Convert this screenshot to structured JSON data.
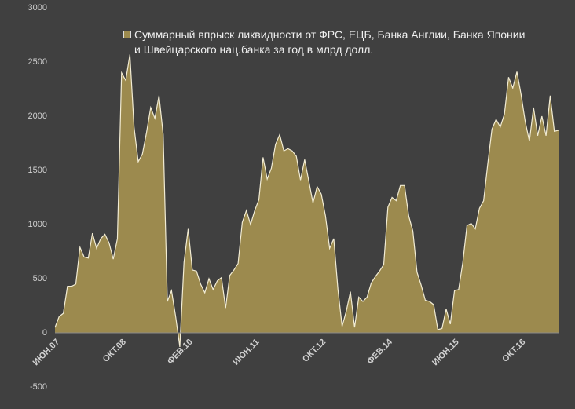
{
  "chart_data": {
    "type": "area",
    "categories": [
      "ИЮН.07",
      null,
      null,
      null,
      null,
      null,
      null,
      null,
      null,
      null,
      null,
      null,
      null,
      null,
      null,
      null,
      "ОКТ.08",
      null,
      null,
      null,
      null,
      null,
      null,
      null,
      null,
      null,
      null,
      null,
      null,
      null,
      null,
      null,
      "ФЕВ.10",
      null,
      null,
      null,
      null,
      null,
      null,
      null,
      null,
      null,
      null,
      null,
      null,
      null,
      null,
      null,
      "ИЮН.11",
      null,
      null,
      null,
      null,
      null,
      null,
      null,
      null,
      null,
      null,
      null,
      null,
      null,
      null,
      null,
      "ОКТ.12",
      null,
      null,
      null,
      null,
      null,
      null,
      null,
      null,
      null,
      null,
      null,
      null,
      null,
      null,
      null,
      "ФЕВ.14",
      null,
      null,
      null,
      null,
      null,
      null,
      null,
      null,
      null,
      null,
      null,
      null,
      null,
      null,
      null,
      "ИЮН.15",
      null,
      null,
      null,
      null,
      null,
      null,
      null,
      null,
      null,
      null,
      null,
      null,
      null,
      null,
      null,
      "ОКТ.16",
      null,
      null,
      null,
      null,
      null,
      null,
      null,
      null,
      null
    ],
    "series": [
      {
        "name": "Суммарный впрыск ликвидности от ФРС, ЕЦБ, Банка Англии, Банка Японии и Швейцарского нац.банка за год в млрд долл.",
        "color": "#9c8a4e",
        "line_color": "#f2ecd4",
        "values": [
          50,
          150,
          180,
          430,
          430,
          450,
          790,
          700,
          690,
          920,
          780,
          870,
          910,
          830,
          680,
          870,
          2400,
          2330,
          2570,
          1900,
          1580,
          1650,
          1850,
          2080,
          1980,
          2190,
          1830,
          290,
          390,
          150,
          -130,
          650,
          960,
          580,
          570,
          450,
          370,
          500,
          400,
          480,
          510,
          230,
          530,
          580,
          640,
          1020,
          1130,
          1000,
          1130,
          1230,
          1620,
          1420,
          1520,
          1740,
          1830,
          1680,
          1700,
          1680,
          1630,
          1410,
          1600,
          1400,
          1200,
          1350,
          1280,
          1080,
          780,
          870,
          400,
          60,
          200,
          380,
          50,
          330,
          290,
          330,
          460,
          520,
          570,
          630,
          1160,
          1250,
          1220,
          1360,
          1360,
          1080,
          940,
          560,
          440,
          300,
          290,
          260,
          30,
          40,
          220,
          80,
          390,
          400,
          650,
          990,
          1010,
          960,
          1150,
          1220,
          1560,
          1880,
          1970,
          1900,
          2020,
          2360,
          2260,
          2410,
          2200,
          1950,
          1770,
          2080,
          1820,
          2000,
          1820,
          2190,
          1860,
          1870
        ]
      }
    ],
    "ylim": [
      -500,
      3000
    ],
    "yticks": [
      -500,
      0,
      500,
      1000,
      1500,
      2000,
      2500,
      3000
    ],
    "grid": false
  }
}
